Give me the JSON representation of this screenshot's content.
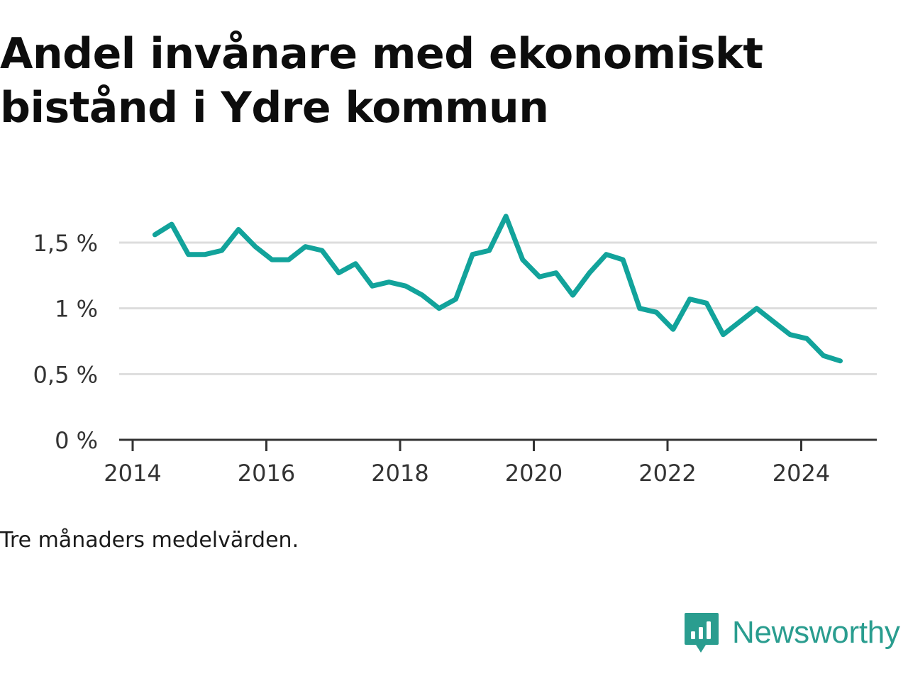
{
  "title": "Andel invånare med ekonomiskt bistånd i Ydre kommun",
  "note": "Tre månaders medelvärden.",
  "brand": {
    "name": "Newsworthy",
    "icon": "bar-chart-speech-bubble-icon"
  },
  "colors": {
    "line": "#12a39b",
    "grid": "#dddddd",
    "axis": "#333333",
    "text": "#333333",
    "brand": "#2a9d8f"
  },
  "chart_data": {
    "type": "line",
    "title": "Andel invånare med ekonomiskt bistånd i Ydre kommun",
    "xlabel": "",
    "ylabel": "",
    "xlim": [
      2013.97,
      2025.3
    ],
    "ylim": [
      0,
      1.9
    ],
    "x_ticks": [
      2014,
      2016,
      2018,
      2020,
      2022,
      2024
    ],
    "x_tick_labels": [
      "2014",
      "2016",
      "2018",
      "2020",
      "2022",
      "2024"
    ],
    "y_ticks": [
      0,
      0.5,
      1,
      1.5
    ],
    "y_tick_labels": [
      "0 %",
      "0,5 %",
      "1 %",
      "1,5 %"
    ],
    "grid": true,
    "legend": "none",
    "series": [
      {
        "x": [
          "2014-05",
          "2014-08",
          "2014-11",
          "2015-02",
          "2015-05",
          "2015-08",
          "2015-11",
          "2016-02",
          "2016-05",
          "2016-08",
          "2016-11",
          "2017-02",
          "2017-05",
          "2017-08",
          "2017-11",
          "2018-02",
          "2018-05",
          "2018-08",
          "2018-11",
          "2019-02",
          "2019-05",
          "2019-08",
          "2019-11",
          "2020-02",
          "2020-05",
          "2020-08",
          "2020-11",
          "2021-02",
          "2021-05",
          "2021-08",
          "2021-11",
          "2022-02",
          "2022-05",
          "2022-08",
          "2022-11",
          "2023-02",
          "2023-05",
          "2023-08",
          "2023-11",
          "2024-02",
          "2024-05",
          "2024-08"
        ],
        "values": [
          1.56,
          1.64,
          1.41,
          1.41,
          1.44,
          1.6,
          1.47,
          1.37,
          1.37,
          1.47,
          1.44,
          1.27,
          1.34,
          1.17,
          1.2,
          1.17,
          1.1,
          1.0,
          1.07,
          1.41,
          1.44,
          1.7,
          1.37,
          1.24,
          1.27,
          1.1,
          1.27,
          1.41,
          1.37,
          1.0,
          0.97,
          0.84,
          1.07,
          1.04,
          0.8,
          0.9,
          1.0,
          0.9,
          0.8,
          0.77,
          0.64,
          0.6
        ]
      }
    ]
  }
}
